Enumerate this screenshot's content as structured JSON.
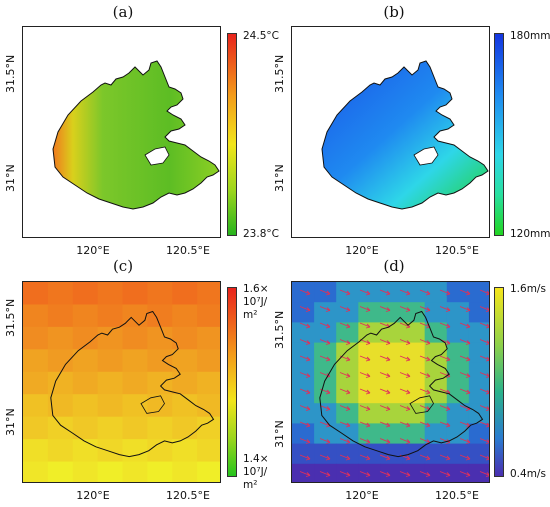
{
  "panels": [
    {
      "id": "a",
      "label": "(a)",
      "legend_max": "24.5°C",
      "legend_min": "23.8°C",
      "colors": [
        "#e8231c",
        "#f39a1a",
        "#f1e51c",
        "#9bd51d",
        "#26b31d"
      ],
      "shading": "temperature"
    },
    {
      "id": "b",
      "label": "(b)",
      "legend_max": "180mm",
      "legend_min": "120mm",
      "colors": [
        "#1436e0",
        "#1f8af0",
        "#2ed6e8",
        "#29e0a0",
        "#22d422"
      ],
      "shading": "precipitation"
    },
    {
      "id": "c",
      "label": "(c)",
      "legend_max_line1": "1.6×",
      "legend_max_line2": "10⁷J/",
      "legend_max_line3": "m²",
      "legend_min_line1": "1.4×",
      "legend_min_line2": "10⁷J/",
      "legend_min_line3": "m²",
      "colors": [
        "#e8231c",
        "#f39a1a",
        "#f1e51c",
        "#9bd51d",
        "#26c41d"
      ],
      "shading": "radiation"
    },
    {
      "id": "d",
      "label": "(d)",
      "legend_max": "1.6m/s",
      "legend_min": "0.4m/s",
      "colors": [
        "#f6e61c",
        "#8fd14a",
        "#2bb38a",
        "#2a7bd0",
        "#4a2fb0"
      ],
      "shading": "wind"
    }
  ],
  "axes": {
    "x_ticks": [
      "120°E",
      "120.5°E"
    ],
    "y_ticks": [
      "31.5°N",
      "31°N"
    ]
  }
}
